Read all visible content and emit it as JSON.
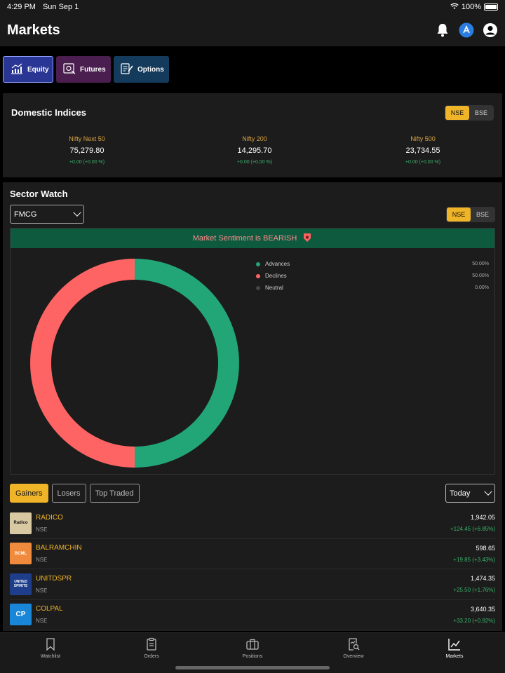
{
  "status_bar": {
    "time": "4:29 PM",
    "date": "Sun Sep 1",
    "battery": "100%"
  },
  "header": {
    "title": "Markets"
  },
  "segments": [
    {
      "label": "Equity",
      "icon": "equity-chart-icon"
    },
    {
      "label": "Futures",
      "icon": "futures-icon"
    },
    {
      "label": "Options",
      "icon": "options-icon"
    }
  ],
  "domestic_indices": {
    "title": "Domestic Indices",
    "exchanges": [
      "NSE",
      "BSE"
    ],
    "selected_exchange": "NSE",
    "items": [
      {
        "name": "Nifty Next 50",
        "value": "75,279.80",
        "change": "+0.00   (+0.00 %)"
      },
      {
        "name": "Nifty 200",
        "value": "14,295.70",
        "change": "+0.00   (+0.00 %)"
      },
      {
        "name": "Nifty 500",
        "value": "23,734.55",
        "change": "+0.00   (+0.00 %)"
      }
    ]
  },
  "sector_watch": {
    "title": "Sector Watch",
    "sector": "FMCG",
    "exchanges": [
      "NSE",
      "BSE"
    ],
    "selected_exchange": "NSE",
    "sentiment_text": "Market Sentiment is BEARISH",
    "legend": [
      {
        "label": "Advances",
        "value": "50.00%",
        "color": "#22a678"
      },
      {
        "label": "Declines",
        "value": "50.00%",
        "color": "#ff6464"
      },
      {
        "label": "Neutral",
        "value": "0.00%",
        "color": "#444444"
      }
    ],
    "filters": [
      "Gainers",
      "Losers",
      "Top Traded"
    ],
    "selected_filter": "Gainers",
    "period": "Today",
    "stocks": [
      {
        "symbol": "RADICO",
        "exchange": "NSE",
        "price": "1,942.05",
        "change": "+124.45   (+6.85%)",
        "logo_text": "Radico",
        "logo_color": "#d9c9a3"
      },
      {
        "symbol": "BALRAMCHIN",
        "exchange": "NSE",
        "price": "598.65",
        "change": "+19.85   (+3.43%)",
        "logo_text": "BCML",
        "logo_color": "#f08a3c"
      },
      {
        "symbol": "UNITDSPR",
        "exchange": "NSE",
        "price": "1,474.35",
        "change": "+25.50   (+1.76%)",
        "logo_text": "UNITED SPIRITS",
        "logo_color": "#1e3e8c"
      },
      {
        "symbol": "COLPAL",
        "exchange": "NSE",
        "price": "3,640.35",
        "change": "+33.20   (+0.92%)",
        "logo_text": "CP",
        "logo_color": "#1a86d8"
      }
    ]
  },
  "chart_data": {
    "type": "pie",
    "categories": [
      "Advances",
      "Declines",
      "Neutral"
    ],
    "values": [
      50.0,
      50.0,
      0.0
    ],
    "colors": [
      "#22a678",
      "#ff6464",
      "#444444"
    ],
    "title": "",
    "legend": "right"
  },
  "bottom_nav": [
    {
      "label": "Watchlist"
    },
    {
      "label": "Orders"
    },
    {
      "label": "Positions"
    },
    {
      "label": "Overview"
    },
    {
      "label": "Markets"
    }
  ]
}
